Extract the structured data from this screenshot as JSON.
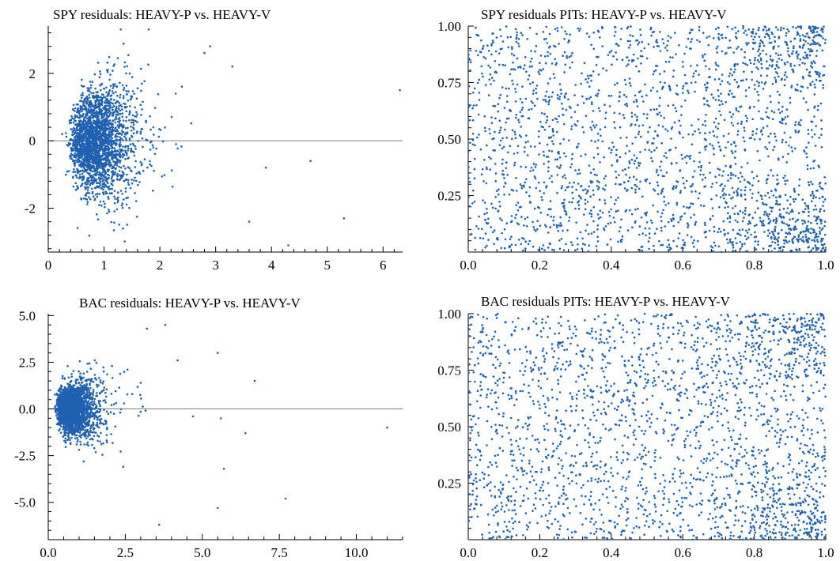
{
  "colors": {
    "points": "#2060b0",
    "axis": "#000000",
    "reference_line": "#7f7f7f",
    "background": "#ffffff"
  },
  "chart_data": [
    {
      "type": "scatter",
      "title": "SPY residuals: HEAVY-P vs. HEAVY-V",
      "xlabel": "",
      "ylabel": "",
      "xlim": [
        0,
        6.35
      ],
      "ylim": [
        -3.3,
        3.4
      ],
      "xticks": [
        0,
        1,
        2,
        3,
        4,
        5,
        6
      ],
      "xtick_labels": [
        "0",
        "1",
        "2",
        "3",
        "4",
        "5",
        "6"
      ],
      "yticks": [
        -2,
        0,
        2
      ],
      "ytick_labels": [
        "-2",
        "0",
        "2"
      ],
      "reference_line_y": 0,
      "grid": false,
      "series": [
        {
          "n_points": 2400,
          "x_dist": "right-skewed, bulk 0.3-1.8, mode ~0.8",
          "y_dist": "centered at 0, spread ~1",
          "outliers": [
            [
              6.3,
              1.5
            ],
            [
              5.3,
              -2.3
            ],
            [
              4.7,
              -0.6
            ],
            [
              4.3,
              -3.1
            ],
            [
              3.9,
              -0.8
            ],
            [
              3.6,
              -2.4
            ],
            [
              3.3,
              2.2
            ],
            [
              2.9,
              2.8
            ],
            [
              2.8,
              2.6
            ],
            [
              1.8,
              3.3
            ],
            [
              1.3,
              3.3
            ]
          ]
        }
      ]
    },
    {
      "type": "scatter",
      "title": "SPY residuals PITs: HEAVY-P vs. HEAVY-V",
      "xlabel": "",
      "ylabel": "",
      "xlim": [
        0,
        1
      ],
      "ylim": [
        0,
        1
      ],
      "xticks": [
        0,
        0.2,
        0.4,
        0.6,
        0.8,
        1.0
      ],
      "xtick_labels": [
        "0.0",
        "0.2",
        "0.4",
        "0.6",
        "0.8",
        "1.0"
      ],
      "yticks": [
        0.25,
        0.5,
        0.75,
        1.0
      ],
      "ytick_labels": [
        "0.25",
        "0.50",
        "0.75",
        "1.00"
      ],
      "grid": false,
      "series": [
        {
          "n_points": 2400,
          "x_dist": "uniform [0,1]",
          "y_dist": "roughly uniform [0,1], denser at (1,0) and (1,1)"
        }
      ]
    },
    {
      "type": "scatter",
      "title": "BAC residuals: HEAVY-P vs. HEAVY-V",
      "xlabel": "",
      "ylabel": "",
      "xlim": [
        0,
        11.5
      ],
      "ylim": [
        -7,
        5.1
      ],
      "xticks": [
        0,
        2.5,
        5,
        7.5,
        10
      ],
      "xtick_labels": [
        "0.0",
        "2.5",
        "5.0",
        "7.5",
        "10.0"
      ],
      "yticks": [
        -5,
        -2.5,
        0,
        2.5,
        5
      ],
      "ytick_labels": [
        "-5.0",
        "-2.5",
        "0.0",
        "2.5",
        "5.0"
      ],
      "reference_line_y": 0,
      "grid": false,
      "series": [
        {
          "n_points": 2400,
          "x_dist": "right-skewed, bulk 0.2-2, mode ~0.7",
          "y_dist": "centered at 0, spread ~1",
          "outliers": [
            [
              11.0,
              -1.0
            ],
            [
              7.7,
              -4.8
            ],
            [
              6.7,
              1.5
            ],
            [
              6.4,
              -1.3
            ],
            [
              5.7,
              -3.2
            ],
            [
              5.5,
              3.0
            ],
            [
              5.5,
              -5.3
            ],
            [
              5.6,
              -0.5
            ],
            [
              4.7,
              -0.4
            ],
            [
              4.2,
              2.6
            ],
            [
              3.8,
              4.5
            ],
            [
              3.6,
              -6.2
            ],
            [
              3.2,
              4.3
            ],
            [
              3.0,
              1.4
            ]
          ]
        }
      ]
    },
    {
      "type": "scatter",
      "title": "BAC residuals PITs: HEAVY-P vs. HEAVY-V",
      "xlabel": "",
      "ylabel": "",
      "xlim": [
        0,
        1
      ],
      "ylim": [
        0,
        1
      ],
      "xticks": [
        0,
        0.2,
        0.4,
        0.6,
        0.8,
        1.0
      ],
      "xtick_labels": [
        "0.0",
        "0.2",
        "0.4",
        "0.6",
        "0.8",
        "1.0"
      ],
      "yticks": [
        0.25,
        0.5,
        0.75,
        1.0
      ],
      "ytick_labels": [
        "0.25",
        "0.50",
        "0.75",
        "1.00"
      ],
      "grid": false,
      "series": [
        {
          "n_points": 2400,
          "x_dist": "uniform [0,1]",
          "y_dist": "roughly uniform [0,1], denser at (1,0) and (1,1)"
        }
      ]
    }
  ]
}
